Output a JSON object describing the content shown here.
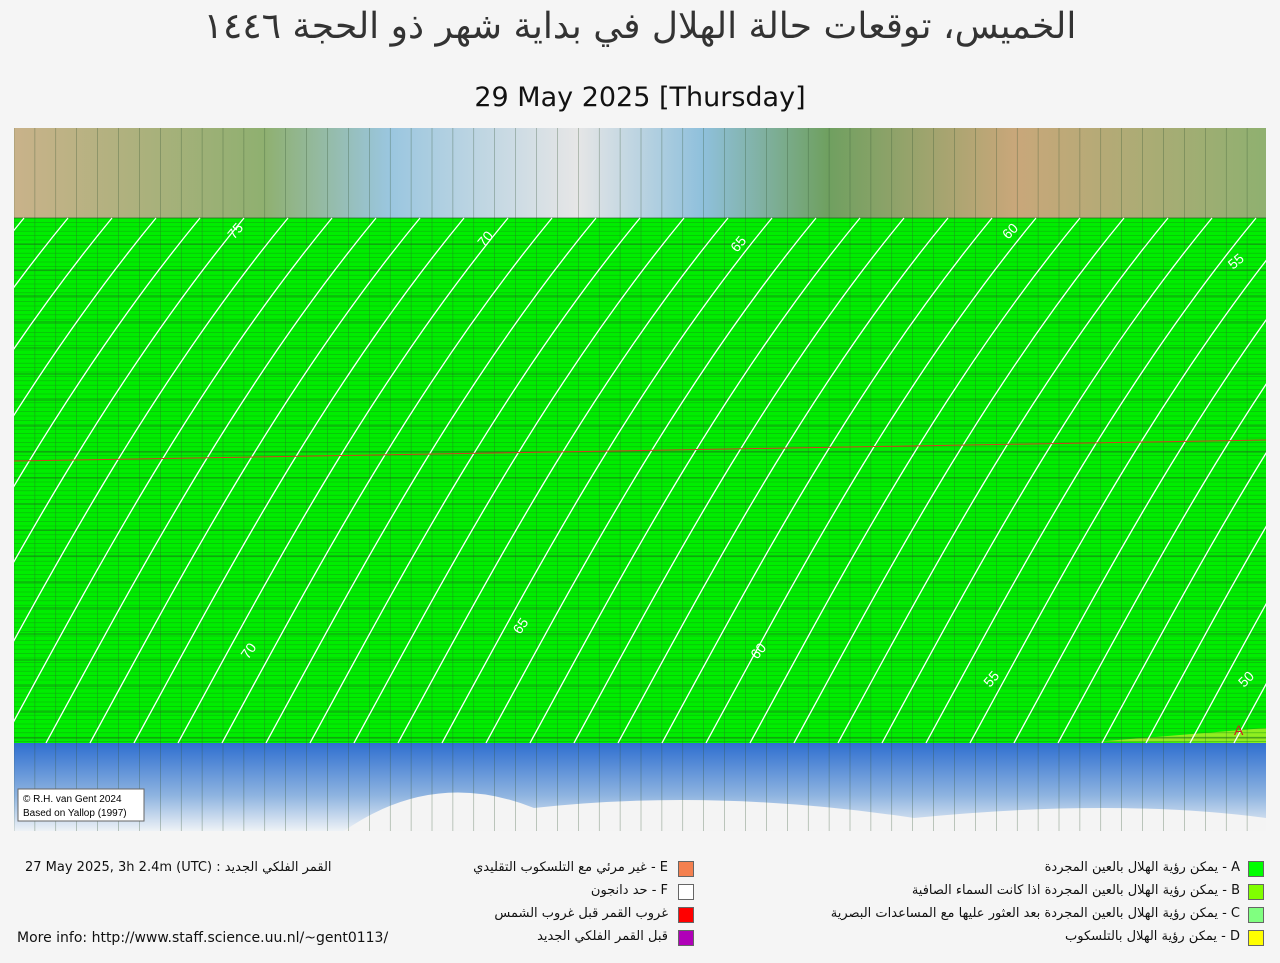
{
  "header": {
    "title": "الخميس، توقعات حالة الهلال في بداية شهر ذو الحجة ١٤٤٦",
    "date": "29 May 2025 [Thursday]"
  },
  "map": {
    "contour_labels": [
      "75",
      "70",
      "65",
      "60",
      "55",
      "70",
      "65",
      "60",
      "55",
      "50"
    ],
    "zone_label": "A",
    "credit": [
      "© R.H. van Gent 2024",
      "Based on Yallop (1997)"
    ]
  },
  "footer": {
    "new_moon": "27 May 2025, 3h 2.4m (UTC) : القمر الفلكي الجديد",
    "more_info": "More info: http://www.staff.science.uu.nl/~gent0113/"
  },
  "legend": [
    {
      "label": "E - غير مرئي مع التلسكوب التقليدي",
      "color": "#f4804f"
    },
    {
      "label": "F - حد دانجون",
      "color": "#ffffff"
    },
    {
      "label": "غروب القمر قبل غروب الشمس",
      "color": "#ff0000"
    },
    {
      "label": "قبل القمر الفلكي الجديد",
      "color": "#b000b8"
    },
    {
      "label": "A - يمكن رؤية الهلال بالعين المجردة",
      "color": "#00ff00"
    },
    {
      "label": "B - يمكن رؤية الهلال بالعين المجردة اذا كانت السماء الصافية",
      "color": "#80ff00"
    },
    {
      "label": "C - يمكن رؤية الهلال بالعين المجردة بعد العثور عليها مع المساعدات البصرية",
      "color": "#80ff80"
    },
    {
      "label": "D - يمكن رؤية الهلال بالتلسكوب",
      "color": "#ffff00"
    }
  ]
}
